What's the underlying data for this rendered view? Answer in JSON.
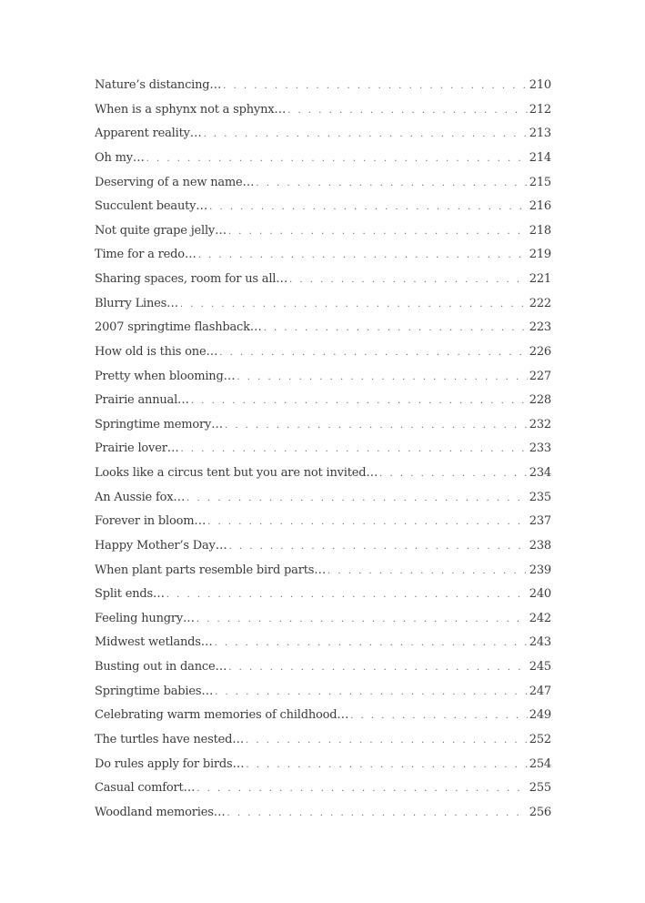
{
  "toc": {
    "entries": [
      {
        "title": "Nature’s distancing…",
        "page": "210"
      },
      {
        "title": "When is a sphynx not a sphynx…",
        "page": "212"
      },
      {
        "title": "Apparent reality…",
        "page": "213"
      },
      {
        "title": "Oh my…",
        "page": "214"
      },
      {
        "title": "Deserving of a new name…",
        "page": "215"
      },
      {
        "title": "Succulent beauty…",
        "page": "216"
      },
      {
        "title": "Not quite grape jelly…",
        "page": "218"
      },
      {
        "title": "Time for a redo…",
        "page": "219"
      },
      {
        "title": "Sharing spaces, room for us all…",
        "page": "221"
      },
      {
        "title": "Blurry Lines…",
        "page": "222"
      },
      {
        "title": "2007 springtime flashback…",
        "page": "223"
      },
      {
        "title": "How old is this one…",
        "page": "226"
      },
      {
        "title": "Pretty when blooming…",
        "page": "227"
      },
      {
        "title": "Prairie annual…",
        "page": "228"
      },
      {
        "title": "Springtime memory…",
        "page": "232"
      },
      {
        "title": "Prairie lover…",
        "page": "233"
      },
      {
        "title": "Looks like a circus tent but you are not invited…",
        "page": "234"
      },
      {
        "title": "An Aussie fox…",
        "page": "235"
      },
      {
        "title": "Forever in bloom…",
        "page": "237"
      },
      {
        "title": "Happy Mother’s Day…",
        "page": "238"
      },
      {
        "title": "When plant parts resemble bird parts…",
        "page": "239"
      },
      {
        "title": "Split ends…",
        "page": "240"
      },
      {
        "title": "Feeling hungry…",
        "page": "242"
      },
      {
        "title": "Midwest wetlands…",
        "page": "243"
      },
      {
        "title": "Busting out in dance…",
        "page": "245"
      },
      {
        "title": "Springtime babies…",
        "page": "247"
      },
      {
        "title": "Celebrating warm memories of childhood…",
        "page": "249"
      },
      {
        "title": "The turtles have nested…",
        "page": "252"
      },
      {
        "title": "Do rules apply for birds…",
        "page": "254"
      },
      {
        "title": "Casual comfort…",
        "page": "255"
      },
      {
        "title": "Woodland memories…",
        "page": "256"
      }
    ]
  }
}
